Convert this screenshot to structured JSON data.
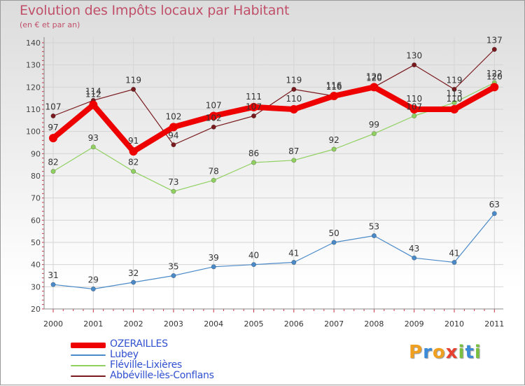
{
  "header": {
    "title": "Evolution des Impôts locaux par Habitant",
    "subtitle": "(en € et par an)"
  },
  "chart_data": {
    "type": "line",
    "title": "Evolution des Impôts locaux par Habitant",
    "ylabel": "(en € et par an)",
    "xlabel": "",
    "categories": [
      "2000",
      "2001",
      "2002",
      "2003",
      "2004",
      "2005",
      "2006",
      "2007",
      "2008",
      "2009",
      "2010",
      "2011"
    ],
    "ylim": [
      20,
      140
    ],
    "yticks": [
      "20",
      "30",
      "40",
      "50",
      "60",
      "70",
      "80",
      "90",
      "100",
      "110",
      "120",
      "130",
      "140"
    ],
    "grid": true,
    "legend_position": "bottom-left",
    "series": [
      {
        "name": "Abbéville-lès-Conflans",
        "color": "#7a1a1e",
        "values": [
          107,
          114,
          119,
          94,
          102,
          107,
          119,
          116,
          120,
          130,
          119,
          137
        ]
      },
      {
        "name": "Fléville-Lixières",
        "color": "#90d060",
        "values": [
          82,
          93,
          82,
          73,
          78,
          86,
          87,
          92,
          99,
          107,
          113,
          122
        ]
      },
      {
        "name": "Lubey",
        "color": "#4a8ac8",
        "values": [
          31,
          29,
          32,
          35,
          39,
          40,
          41,
          50,
          53,
          43,
          41,
          63
        ]
      },
      {
        "name": "OZERAILLES",
        "color": "#ee0000",
        "values": [
          97,
          112,
          91,
          102,
          107,
          111,
          110,
          116,
          120,
          110,
          110,
          120
        ]
      }
    ]
  },
  "legend": {
    "items": [
      {
        "label": "OZERAILLES",
        "color": "#ee0000"
      },
      {
        "label": "Lubey",
        "color": "#4a8ac8"
      },
      {
        "label": "Fléville-Lixières",
        "color": "#90d060"
      },
      {
        "label": "Abbéville-lès-Conflans",
        "color": "#7a1a1e"
      }
    ]
  },
  "logo": {
    "letters": [
      "P",
      "r",
      "o",
      "x",
      "i",
      "t",
      "i"
    ],
    "colors": [
      "#f0a020",
      "#3a8ad8",
      "#f0a020",
      "#e84030",
      "#7ac040",
      "#3a8ad8",
      "#7ac040"
    ]
  }
}
